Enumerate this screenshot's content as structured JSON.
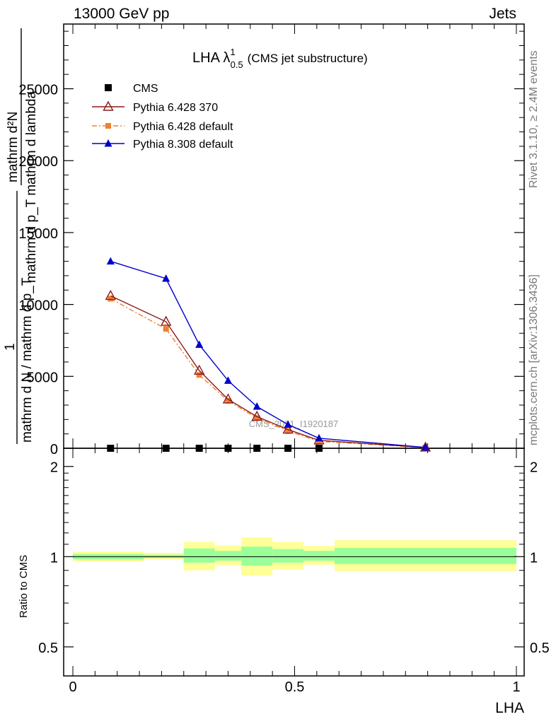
{
  "header": {
    "left": "13000 GeV pp",
    "right": "Jets"
  },
  "side_labels": {
    "rivet": "Rivet 3.1.10, ≥ 2.4M events",
    "mcplots": "mcplots.cern.ch [arXiv:1306.3436]"
  },
  "watermark": "CMS_2021_I1920187",
  "main_title": {
    "prefix": "LHA λ",
    "sup": "1",
    "sub": "0.5",
    "suffix": "(CMS jet substructure)"
  },
  "y_axis_label_main": {
    "numerator_top": "mathrm d²N",
    "denominator_top": "mathrm d p_T mathrm d lambda",
    "one": "1",
    "denominator_bottom": "mathrm d N / mathrm d p_T"
  },
  "y_axis_label_ratio": "Ratio to CMS",
  "x_axis_label": "LHA",
  "colors": {
    "cms": "#000000",
    "pythia6_370": "#8b1a1a",
    "pythia6_default": "#f08030",
    "pythia8_default": "#0000cc",
    "band_yellow": "#ffff99",
    "band_green": "#99ff99",
    "side_text": "#7a7a7a"
  },
  "chart_data": [
    {
      "type": "line",
      "title": "LHA λ^1_0.5 (CMS jet substructure)",
      "xlabel": "",
      "ylabel": "1/(mathrm d N / mathrm d p_T) mathrm d²N / (mathrm d p_T mathrm d lambda)",
      "xlim": [
        0,
        1
      ],
      "ylim": [
        0,
        29500
      ],
      "yticks": [
        0,
        5000,
        10000,
        15000,
        20000,
        25000
      ],
      "yticklabels": [
        "0",
        "5000",
        "10000",
        "15000",
        "20000",
        "25000"
      ],
      "legend_position": "top-left",
      "x": [
        0.085,
        0.21,
        0.285,
        0.35,
        0.415,
        0.485,
        0.555,
        0.795
      ],
      "series": [
        {
          "name": "CMS",
          "marker": "square",
          "values": [
            30,
            30,
            30,
            30,
            30,
            30,
            30,
            30
          ]
        },
        {
          "name": "Pythia 6.428 370",
          "marker": "triangle-open",
          "values": [
            10600,
            8800,
            5400,
            3400,
            2200,
            1300,
            550,
            50
          ]
        },
        {
          "name": "Pythia 6.428 default",
          "marker": "square-small",
          "values": [
            10400,
            8300,
            5100,
            3300,
            2100,
            1200,
            480,
            40
          ]
        },
        {
          "name": "Pythia 8.308 default",
          "marker": "triangle-filled",
          "values": [
            13000,
            11800,
            7200,
            4700,
            2900,
            1650,
            700,
            60
          ]
        }
      ]
    },
    {
      "type": "area",
      "title": "",
      "xlabel": "LHA",
      "ylabel": "Ratio to CMS",
      "xlim": [
        0,
        1
      ],
      "ylim": [
        0.4,
        2.3
      ],
      "log_y": true,
      "xticks": [
        0,
        0.5,
        1
      ],
      "xticklabels": [
        "0",
        "0.5",
        "1"
      ],
      "yticks": [
        0.5,
        1,
        2
      ],
      "yticklabels": [
        "0.5",
        "1",
        "2"
      ],
      "reference_line": 1,
      "bins": [
        0,
        0.16,
        0.25,
        0.32,
        0.38,
        0.45,
        0.52,
        0.59,
        1.0
      ],
      "band_yellow": {
        "low": [
          0.965,
          0.98,
          0.9,
          0.935,
          0.865,
          0.905,
          0.94,
          0.895
        ],
        "high": [
          1.04,
          1.03,
          1.12,
          1.09,
          1.16,
          1.12,
          1.085,
          1.135
        ]
      },
      "band_green": {
        "low": [
          0.98,
          0.99,
          0.955,
          0.97,
          0.935,
          0.955,
          0.97,
          0.945
        ],
        "high": [
          1.02,
          1.015,
          1.065,
          1.045,
          1.08,
          1.06,
          1.045,
          1.07
        ]
      }
    }
  ]
}
